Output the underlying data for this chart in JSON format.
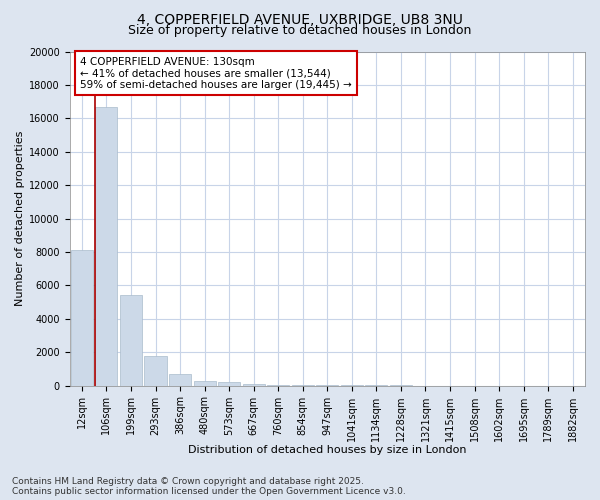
{
  "title_line1": "4, COPPERFIELD AVENUE, UXBRIDGE, UB8 3NU",
  "title_line2": "Size of property relative to detached houses in London",
  "xlabel": "Distribution of detached houses by size in London",
  "ylabel": "Number of detached properties",
  "bar_color": "#ccd9e8",
  "bar_edge_color": "#aabccc",
  "categories": [
    "12sqm",
    "106sqm",
    "199sqm",
    "293sqm",
    "386sqm",
    "480sqm",
    "573sqm",
    "667sqm",
    "760sqm",
    "854sqm",
    "947sqm",
    "1041sqm",
    "1134sqm",
    "1228sqm",
    "1321sqm",
    "1415sqm",
    "1508sqm",
    "1602sqm",
    "1695sqm",
    "1789sqm",
    "1882sqm"
  ],
  "values": [
    8100,
    16700,
    5400,
    1800,
    700,
    300,
    200,
    100,
    50,
    30,
    20,
    15,
    10,
    8,
    5,
    5,
    3,
    2,
    2,
    1,
    1
  ],
  "vline_x_bar_index": 1,
  "vline_color": "#aa0000",
  "annotation_text_line1": "4 COPPERFIELD AVENUE: 130sqm",
  "annotation_text_line2": "← 41% of detached houses are smaller (13,544)",
  "annotation_text_line3": "59% of semi-detached houses are larger (19,445) →",
  "annotation_box_facecolor": "#ffffff",
  "annotation_box_edgecolor": "#cc0000",
  "ylim": [
    0,
    20000
  ],
  "yticks": [
    0,
    2000,
    4000,
    6000,
    8000,
    10000,
    12000,
    14000,
    16000,
    18000,
    20000
  ],
  "background_color": "#dde5f0",
  "plot_bg_color": "#ffffff",
  "footer_line1": "Contains HM Land Registry data © Crown copyright and database right 2025.",
  "footer_line2": "Contains public sector information licensed under the Open Government Licence v3.0.",
  "title_fontsize": 10,
  "subtitle_fontsize": 9,
  "tick_fontsize": 7,
  "label_fontsize": 8,
  "annotation_fontsize": 7.5,
  "footer_fontsize": 6.5,
  "grid_color": "#c8d4e8"
}
